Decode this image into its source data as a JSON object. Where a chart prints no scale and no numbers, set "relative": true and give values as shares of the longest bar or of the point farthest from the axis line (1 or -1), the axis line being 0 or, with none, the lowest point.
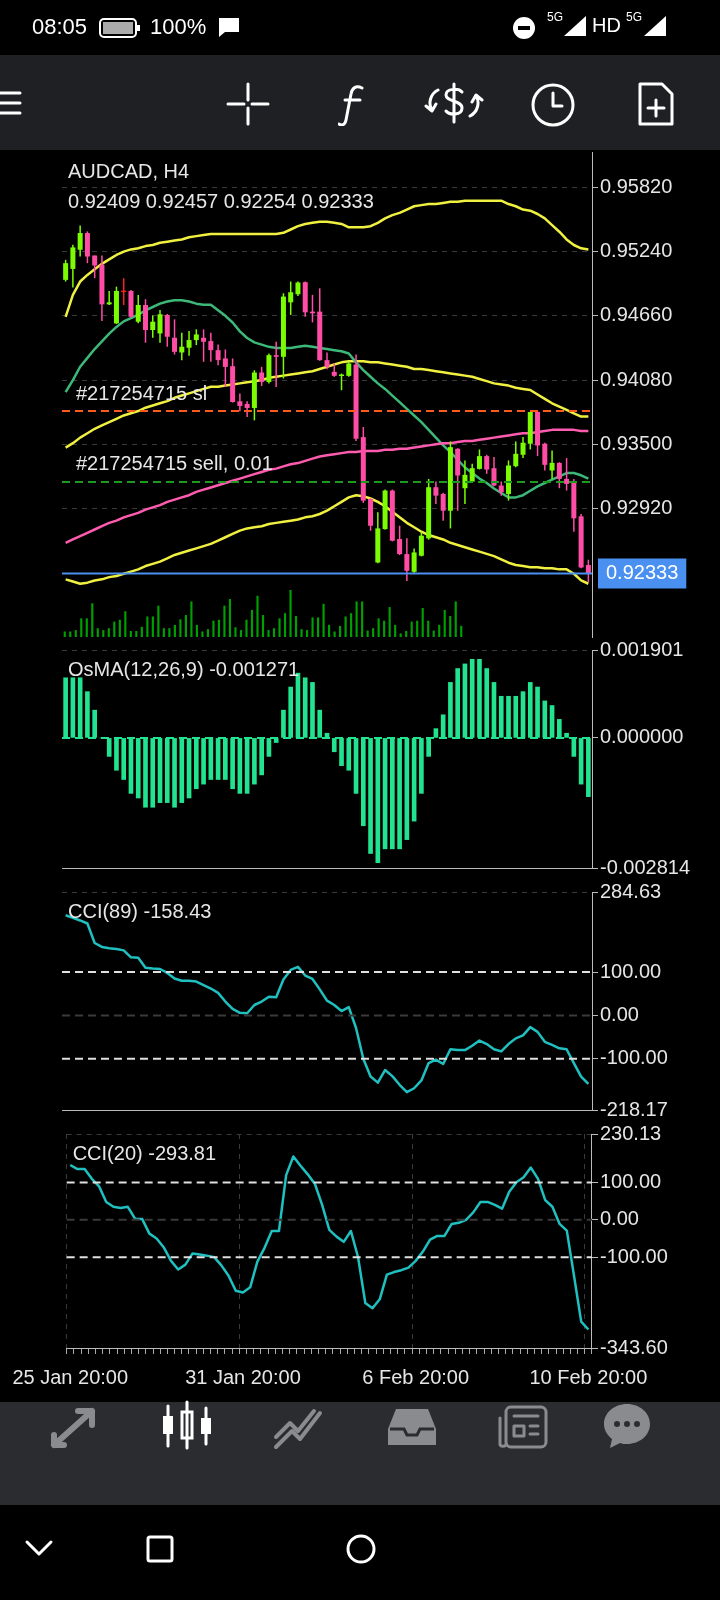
{
  "chart_data": [
    {
      "type": "candlestick",
      "title": "AUDCAD, H4",
      "subtitle": "0.92409 0.92457 0.92254 0.92333",
      "categories": [
        null,
        null,
        null,
        null,
        null,
        null,
        null,
        null,
        null,
        null,
        null,
        null,
        null,
        null,
        null,
        null,
        null,
        null,
        null,
        null,
        null,
        null,
        null,
        null,
        null,
        null,
        null,
        null,
        null,
        null,
        null,
        null,
        null,
        null,
        null,
        null,
        null,
        null,
        null,
        null,
        null,
        null,
        null,
        null,
        null,
        null,
        null,
        null,
        null,
        null,
        null,
        null,
        null,
        null,
        null,
        null,
        null,
        null,
        null,
        null,
        null,
        null,
        null,
        null,
        null,
        null,
        null,
        null,
        null,
        null,
        null,
        null,
        null
      ],
      "ohlc": [
        [
          0.94985,
          0.95166,
          0.9497,
          0.95136
        ],
        [
          0.95084,
          0.95302,
          0.94915,
          0.95278
        ],
        [
          0.95257,
          0.95477,
          0.95196,
          0.95408
        ],
        [
          0.95408,
          0.95423,
          0.95136,
          0.95196
        ],
        [
          0.95205,
          0.95205,
          0.95,
          0.95115
        ],
        [
          0.95121,
          0.95205,
          0.94613,
          0.94764
        ],
        [
          0.94764,
          0.94885,
          0.94758,
          0.94782
        ],
        [
          0.94592,
          0.94924,
          0.94586,
          0.94885
        ],
        [
          0.94888,
          0.95,
          0.94758,
          0.94882
        ],
        [
          0.94885,
          0.94894,
          0.94643,
          0.94652
        ],
        [
          0.94607,
          0.94849,
          0.94592,
          0.94758
        ],
        [
          0.94758,
          0.9481,
          0.94417,
          0.94532
        ],
        [
          0.94532,
          0.94662,
          0.94462,
          0.94607
        ],
        [
          0.94501,
          0.94713,
          0.94417,
          0.94674
        ],
        [
          0.94668,
          0.94677,
          0.94381,
          0.94471
        ],
        [
          0.94462,
          0.94628,
          0.94311,
          0.94335
        ],
        [
          0.94329,
          0.94508,
          0.9426,
          0.94381
        ],
        [
          0.94372,
          0.94523,
          0.94299,
          0.94441
        ],
        [
          0.94441,
          0.94538,
          0.94396,
          0.94492
        ],
        [
          0.94462,
          0.94538,
          0.94245,
          0.94426
        ],
        [
          0.94432,
          0.94508,
          0.94245,
          0.9435
        ],
        [
          0.9435,
          0.94402,
          0.94214,
          0.9426
        ],
        [
          0.94275,
          0.94356,
          0.94018,
          0.94199
        ],
        [
          0.94205,
          0.94275,
          0.93876,
          0.93882
        ],
        [
          0.93888,
          0.93958,
          0.93798,
          0.93846
        ],
        [
          0.93864,
          0.93888,
          0.93746,
          0.93828
        ],
        [
          0.93828,
          0.94169,
          0.93716,
          0.94148
        ],
        [
          0.94148,
          0.94199,
          0.94027,
          0.94063
        ],
        [
          0.94063,
          0.9432,
          0.94048,
          0.94305
        ],
        [
          0.94305,
          0.94426,
          0.94018,
          0.9429
        ],
        [
          0.9429,
          0.94864,
          0.94094,
          0.94834
        ],
        [
          0.94782,
          0.9497,
          0.94668,
          0.94873
        ],
        [
          0.94855,
          0.9497,
          0.9484,
          0.94961
        ],
        [
          0.94964,
          0.9497,
          0.94652,
          0.94692
        ],
        [
          0.94698,
          0.94849,
          0.94601,
          0.94683
        ],
        [
          0.94698,
          0.94909,
          0.94254,
          0.9426
        ],
        [
          0.9426,
          0.94329,
          0.94178,
          0.94199
        ],
        [
          0.94154,
          0.9423,
          0.94109,
          0.94118
        ],
        [
          0.94124,
          0.94139,
          0.93988,
          0.9413
        ],
        [
          0.94118,
          0.94245,
          0.94109,
          0.9423
        ],
        [
          0.9422,
          0.94311,
          0.93529,
          0.9355
        ],
        [
          0.93565,
          0.93656,
          0.9297,
          0.92991
        ],
        [
          0.93006,
          0.93012,
          0.92719,
          0.92764
        ],
        [
          0.92432,
          0.92885,
          0.92426,
          0.9274
        ],
        [
          0.92734,
          0.93091,
          0.92728,
          0.93082
        ],
        [
          0.93082,
          0.93091,
          0.92623,
          0.92629
        ],
        [
          0.92644,
          0.92764,
          0.92499,
          0.92508
        ],
        [
          0.92508,
          0.9265,
          0.92266,
          0.92357
        ],
        [
          0.92348,
          0.92559,
          0.92327,
          0.92523
        ],
        [
          0.92493,
          0.92704,
          0.92487,
          0.92674
        ],
        [
          0.9265,
          0.93187,
          0.92638,
          0.93112
        ],
        [
          0.93112,
          0.93163,
          0.92961,
          0.93036
        ],
        [
          0.93051,
          0.93061,
          0.9281,
          0.929
        ],
        [
          0.929,
          0.93526,
          0.9274,
          0.93474
        ],
        [
          0.93459,
          0.93465,
          0.929,
          0.93218
        ],
        [
          0.93103,
          0.93354,
          0.92961,
          0.93224
        ],
        [
          0.93163,
          0.93323,
          0.93157,
          0.93284
        ],
        [
          0.93278,
          0.93453,
          0.93272,
          0.93393
        ],
        [
          0.93393,
          0.93405,
          0.93233,
          0.93272
        ],
        [
          0.93284,
          0.93384,
          0.93121,
          0.93127
        ],
        [
          0.93127,
          0.93163,
          0.93036,
          0.93067
        ],
        [
          0.93051,
          0.93354,
          0.92991,
          0.93308
        ],
        [
          0.93302,
          0.93526,
          0.93293,
          0.93414
        ],
        [
          0.93405,
          0.93565,
          0.93375,
          0.93514
        ],
        [
          0.93505,
          0.93792,
          0.93453,
          0.93792
        ],
        [
          0.93792,
          0.93798,
          0.93393,
          0.93489
        ],
        [
          0.93505,
          0.93514,
          0.93263,
          0.93314
        ],
        [
          0.93263,
          0.93444,
          0.93187,
          0.93332
        ],
        [
          0.93332,
          0.93338,
          0.93103,
          0.93187
        ],
        [
          0.93187,
          0.93375,
          0.93082,
          0.93142
        ],
        [
          0.93151,
          0.93187,
          0.9271,
          0.92831
        ],
        [
          0.92849,
          0.9287,
          0.92381,
          0.92387
        ],
        [
          0.92409,
          0.92457,
          0.92254,
          0.92333
        ]
      ],
      "colors": [
        "#7cfc00",
        "#7cfc00",
        "#7cfc00",
        "#ff4da6",
        "#ff4da6",
        "#ff4da6",
        "#7cfc00",
        "#7cfc00",
        "#ff2020",
        "#ff4da6",
        "#7cfc00",
        "#ff4da6",
        "#7cfc00",
        "#7cfc00",
        "#ff4da6",
        "#ff4da6",
        "#7cfc00",
        "#7cfc00",
        "#7cfc00",
        "#ff4da6",
        "#ff4da6",
        "#ff4da6",
        "#ff4da6",
        "#ff4da6",
        "#ff4da6",
        "#ff4da6",
        "#7cfc00",
        "#ff4da6",
        "#7cfc00",
        "#ff4da6",
        "#7cfc00",
        "#7cfc00",
        "#7cfc00",
        "#ff4da6",
        "#ff4da6",
        "#ff4da6",
        "#ff4da6",
        "#ff4da6",
        "#7cfc00",
        "#7cfc00",
        "#ff4da6",
        "#ff4da6",
        "#ff4da6",
        "#7cfc00",
        "#7cfc00",
        "#ff4da6",
        "#ff4da6",
        "#ff4da6",
        "#7cfc00",
        "#7cfc00",
        "#7cfc00",
        "#ff4da6",
        "#ff4da6",
        "#7cfc00",
        "#ff4da6",
        "#7cfc00",
        "#7cfc00",
        "#7cfc00",
        "#ff4da6",
        "#ff4da6",
        "#ff4da6",
        "#7cfc00",
        "#7cfc00",
        "#7cfc00",
        "#7cfc00",
        "#ff4da6",
        "#ff4da6",
        "#7cfc00",
        "#ff4da6",
        "#ff4da6",
        "#ff4da6",
        "#ff4da6",
        "#ff4da6"
      ],
      "series": [
        {
          "type": "line",
          "color": "#f0f040",
          "values": [
            0.9465,
            0.9485,
            0.9497,
            0.9503,
            0.9508,
            0.9513,
            0.9517,
            0.9521,
            0.9524,
            0.9526,
            0.9527,
            0.9529,
            0.953,
            0.9532,
            0.9533,
            0.9534,
            0.9535,
            0.9537,
            0.9538,
            0.9539,
            0.954,
            0.954,
            0.954,
            0.954,
            0.954,
            0.954,
            0.954,
            0.954,
            0.954,
            0.954,
            0.9541,
            0.9544,
            0.9547,
            0.9549,
            0.955,
            0.9551,
            0.9551,
            0.955,
            0.9549,
            0.9546,
            0.9546,
            0.9546,
            0.9547,
            0.955,
            0.9554,
            0.9557,
            0.9559,
            0.9562,
            0.9565,
            0.9566,
            0.9567,
            0.9567,
            0.9568,
            0.9569,
            0.9569,
            0.957,
            0.957,
            0.957,
            0.957,
            0.957,
            0.957,
            0.9567,
            0.9565,
            0.9562,
            0.9561,
            0.9558,
            0.9554,
            0.9548,
            0.9542,
            0.9535,
            0.953,
            0.9527,
            0.9526
          ]
        },
        {
          "type": "line",
          "color": "#f0f040",
          "values": [
            0.9347,
            0.9351,
            0.9356,
            0.936,
            0.9364,
            0.9367,
            0.937,
            0.9373,
            0.9376,
            0.9378,
            0.938,
            0.9383,
            0.9385,
            0.9387,
            0.9389,
            0.9392,
            0.9394,
            0.9396,
            0.9398,
            0.94,
            0.9402,
            0.9402,
            0.9403,
            0.9404,
            0.9405,
            0.9406,
            0.9407,
            0.9408,
            0.941,
            0.9411,
            0.9412,
            0.9413,
            0.9414,
            0.9415,
            0.9416,
            0.9418,
            0.942,
            0.9422,
            0.9424,
            0.9425,
            0.9425,
            0.9425,
            0.9424,
            0.9424,
            0.9423,
            0.9422,
            0.9421,
            0.942,
            0.9418,
            0.9418,
            0.9417,
            0.9416,
            0.9415,
            0.9414,
            0.9413,
            0.9412,
            0.9411,
            0.9409,
            0.9407,
            0.9405,
            0.9404,
            0.9403,
            0.9401,
            0.94,
            0.9399,
            0.9395,
            0.9391,
            0.9387,
            0.9384,
            0.9381,
            0.9378,
            0.9375,
            0.9375
          ]
        },
        {
          "type": "line",
          "color": "#f0f040",
          "values": [
            0.9228,
            0.9226,
            0.9224,
            0.9225,
            0.9227,
            0.9228,
            0.923,
            0.9231,
            0.9233,
            0.9235,
            0.9237,
            0.924,
            0.9242,
            0.9244,
            0.9247,
            0.925,
            0.9252,
            0.9254,
            0.9256,
            0.9258,
            0.926,
            0.9263,
            0.9266,
            0.9269,
            0.9272,
            0.9274,
            0.9275,
            0.9276,
            0.9278,
            0.9279,
            0.928,
            0.9281,
            0.9282,
            0.9284,
            0.9285,
            0.9287,
            0.929,
            0.9294,
            0.9298,
            0.9302,
            0.9304,
            0.9303,
            0.9301,
            0.9298,
            0.9294,
            0.9289,
            0.9284,
            0.9279,
            0.9275,
            0.9271,
            0.9268,
            0.9266,
            0.9264,
            0.9261,
            0.9259,
            0.9257,
            0.9255,
            0.9253,
            0.9251,
            0.9249,
            0.9246,
            0.9243,
            0.9241,
            0.924,
            0.9239,
            0.9239,
            0.9238,
            0.9238,
            0.9237,
            0.9237,
            0.9233,
            0.9227,
            0.9224
          ]
        },
        {
          "type": "line",
          "color": "#3cb878",
          "values": [
            0.9397,
            0.9408,
            0.942,
            0.9428,
            0.9436,
            0.9443,
            0.945,
            0.9456,
            0.9461,
            0.9464,
            0.9467,
            0.9471,
            0.9474,
            0.9477,
            0.9479,
            0.948,
            0.948,
            0.9479,
            0.9477,
            0.9476,
            0.9476,
            0.9471,
            0.9466,
            0.946,
            0.9452,
            0.9446,
            0.9442,
            0.944,
            0.9438,
            0.9437,
            0.9437,
            0.9437,
            0.9438,
            0.9439,
            0.9438,
            0.9437,
            0.9436,
            0.9435,
            0.9434,
            0.9432,
            0.9424,
            0.9417,
            0.9411,
            0.9405,
            0.94,
            0.9394,
            0.9388,
            0.9382,
            0.9376,
            0.937,
            0.9363,
            0.9356,
            0.9349,
            0.9343,
            0.9336,
            0.9329,
            0.9324,
            0.9319,
            0.9315,
            0.931,
            0.9306,
            0.9302,
            0.9302,
            0.9304,
            0.9308,
            0.9312,
            0.9315,
            0.9318,
            0.9321,
            0.9324,
            0.9324,
            0.9322,
            0.9319
          ]
        },
        {
          "type": "line",
          "color": "#ff5cb0",
          "values": [
            0.9261,
            0.9264,
            0.9267,
            0.927,
            0.9273,
            0.9276,
            0.9279,
            0.9281,
            0.9284,
            0.9286,
            0.9288,
            0.9291,
            0.9293,
            0.9295,
            0.9298,
            0.93,
            0.9302,
            0.9304,
            0.9307,
            0.9309,
            0.9311,
            0.9313,
            0.9315,
            0.9317,
            0.9319,
            0.9321,
            0.9323,
            0.9325,
            0.9327,
            0.9328,
            0.933,
            0.9332,
            0.9333,
            0.9335,
            0.9337,
            0.9339,
            0.934,
            0.9341,
            0.9342,
            0.9343,
            0.9343,
            0.9344,
            0.9344,
            0.9344,
            0.9345,
            0.9345,
            0.9346,
            0.9346,
            0.9347,
            0.9348,
            0.9349,
            0.935,
            0.9351,
            0.9351,
            0.9352,
            0.9353,
            0.9353,
            0.9354,
            0.9355,
            0.9356,
            0.9357,
            0.9358,
            0.9359,
            0.936,
            0.936,
            0.9361,
            0.9362,
            0.9363,
            0.9363,
            0.9363,
            0.9363,
            0.9362,
            0.9362
          ]
        }
      ],
      "ylim": [
        0.9175,
        0.9614
      ],
      "yticks": [
        {
          "value": 0.9582,
          "label": "0.95820"
        },
        {
          "value": 0.9524,
          "label": "0.95240"
        },
        {
          "value": 0.9466,
          "label": "0.94660"
        },
        {
          "value": 0.9408,
          "label": "0.94080"
        },
        {
          "value": 0.935,
          "label": "0.93500"
        },
        {
          "value": 0.9292,
          "label": "0.92920"
        }
      ],
      "grid": true,
      "tick_labels": "y",
      "ref_lines": [
        {
          "axis": "y",
          "value": 0.938,
          "label": "#217254715 sl",
          "color": "#ff5a1e",
          "line_style": "dashed"
        },
        {
          "axis": "y",
          "value": 0.9316,
          "label": "#217254715 sell, 0.01",
          "color": "#1e9a1e",
          "line_style": "dashed"
        },
        {
          "axis": "y",
          "value": 0.92333,
          "label": "0.92333",
          "color": "#4a90f0",
          "line_style": "solid"
        }
      ],
      "annotations": [
        "08:05",
        "100%",
        "5G",
        "HD",
        "5G"
      ]
    },
    {
      "type": "bar",
      "relative": true,
      "tick_labels": false,
      "color": "#00a000",
      "categories": [
        null,
        null,
        null,
        null,
        null,
        null,
        null,
        null,
        null,
        null,
        null,
        null,
        null,
        null,
        null,
        null,
        null,
        null,
        null,
        null,
        null,
        null,
        null,
        null,
        null,
        null,
        null,
        null,
        null,
        null,
        null,
        null,
        null,
        null,
        null,
        null,
        null,
        null,
        null,
        null,
        null,
        null,
        null,
        null,
        null,
        null,
        null,
        null,
        null,
        null,
        null,
        null,
        null,
        null,
        null,
        null,
        null,
        null,
        null,
        null,
        null,
        null,
        null,
        null,
        null,
        null,
        null,
        null,
        null,
        null,
        null,
        null,
        null
      ],
      "values": [
        0.11,
        0.11,
        0.14,
        0.39,
        0.39,
        0.71,
        0.18,
        0.14,
        0.18,
        0.32,
        0.36,
        0.54,
        0.12,
        0.12,
        0.21,
        0.43,
        0.43,
        0.66,
        0.18,
        0.18,
        0.25,
        0.37,
        0.46,
        0.75,
        0.25,
        0.11,
        0.16,
        0.34,
        0.36,
        0.66,
        0.8,
        0.2,
        0.14,
        0.36,
        0.57,
        0.87,
        0.46,
        0.14,
        0.18,
        0.39,
        0.5,
        1,
        0.44,
        0.16,
        0.14,
        0.41,
        0.41,
        0.7,
        0.25,
        0.11,
        0.23,
        0.43,
        0.5,
        0.75,
        0.75,
        0.13,
        0.18,
        0.39,
        0.34,
        0.63,
        0.25,
        0.07,
        0.12,
        0.32,
        0.34,
        0.61,
        0.34,
        0.13,
        0.25,
        0.57,
        0.44,
        0.75,
        0.23
      ]
    },
    {
      "type": "bar",
      "title": "OsMA(12,26,9) -0.001271",
      "color": "#22e38f",
      "categories": [
        null,
        null,
        null,
        null,
        null,
        null,
        null,
        null,
        null,
        null,
        null,
        null,
        null,
        null,
        null,
        null,
        null,
        null,
        null,
        null,
        null,
        null,
        null,
        null,
        null,
        null,
        null,
        null,
        null,
        null,
        null,
        null,
        null,
        null,
        null,
        null,
        null,
        null,
        null,
        null,
        null,
        null,
        null,
        null,
        null,
        null,
        null,
        null,
        null,
        null,
        null,
        null,
        null,
        null,
        null,
        null,
        null,
        null,
        null,
        null,
        null,
        null,
        null,
        null,
        null,
        null,
        null,
        null,
        null,
        null,
        null,
        null,
        null
      ],
      "values": [
        0.0013,
        0.0013,
        0.0013,
        0.001,
        0.0006,
        0,
        -0.0004,
        -0.0007,
        -0.0009,
        -0.0012,
        -0.0013,
        -0.0015,
        -0.0015,
        -0.0014,
        -0.0014,
        -0.0015,
        -0.0014,
        -0.0013,
        -0.0011,
        -0.001,
        -0.0009,
        -0.0009,
        -0.0009,
        -0.0011,
        -0.0012,
        -0.0012,
        -0.001,
        -0.0008,
        -0.0004,
        -0.0001,
        0.0006,
        0.0011,
        0.0014,
        0.0013,
        0.0012,
        0.0006,
        0.0001,
        -0.0003,
        -0.0006,
        -0.0007,
        -0.0012,
        -0.0019,
        -0.0025,
        -0.0027,
        -0.0024,
        -0.0024,
        -0.0024,
        -0.0022,
        -0.0018,
        -0.0012,
        -0.0004,
        0.0002,
        0.0005,
        0.0012,
        0.0015,
        0.0016,
        0.0017,
        0.0017,
        0.0015,
        0.0012,
        0.0009,
        0.0009,
        0.0009,
        0.001,
        0.0012,
        0.0011,
        0.0008,
        0.0007,
        0.0004,
        0.0001,
        -0.0004,
        -0.001,
        -0.001271
      ],
      "ylim": [
        -0.002814,
        0.001901
      ],
      "yticks": [
        {
          "value": 0.001901,
          "label": "0.001901"
        },
        {
          "value": 0,
          "label": "0.000000"
        },
        {
          "value": -0.002814,
          "label": "-0.002814"
        }
      ],
      "grid": true,
      "tick_labels": "y",
      "ref_lines": [
        {
          "axis": "y",
          "value": 0,
          "color": "#22e38f",
          "line_style": "dashed"
        }
      ]
    },
    {
      "type": "line",
      "title": "CCI(89) -158.43",
      "categories": [
        null,
        null,
        null,
        null,
        null,
        null,
        null,
        null,
        null,
        null,
        null,
        null,
        null,
        null,
        null,
        null,
        null,
        null,
        null,
        null,
        null,
        null,
        null,
        null,
        null,
        null,
        null,
        null,
        null,
        null,
        null,
        null,
        null,
        null,
        null,
        null,
        null,
        null,
        null,
        null,
        null,
        null,
        null,
        null,
        null,
        null,
        null,
        null,
        null,
        null,
        null,
        null,
        null,
        null,
        null,
        null,
        null,
        null,
        null,
        null,
        null,
        null,
        null,
        null,
        null,
        null,
        null,
        null,
        null,
        null,
        null,
        null,
        null
      ],
      "series": [
        {
          "color": "#20c0c0",
          "values": [
            231,
            225,
            219,
            212,
            167,
            158,
            155,
            153,
            150,
            134,
            133,
            110,
            108,
            107,
            98,
            85,
            80,
            80,
            78,
            70,
            62,
            52,
            32,
            15,
            6,
            5,
            24,
            32,
            43,
            42,
            83,
            105,
            112,
            92,
            84,
            60,
            34,
            24,
            10,
            19,
            -29,
            -100,
            -141,
            -155,
            -126,
            -140,
            -160,
            -177,
            -168,
            -150,
            -110,
            -102,
            -112,
            -78,
            -80,
            -80,
            -70,
            -58,
            -66,
            -78,
            -83,
            -66,
            -53,
            -46,
            -27,
            -38,
            -61,
            -68,
            -76,
            -78,
            -110,
            -141,
            -158
          ]
        }
      ],
      "ylim": [
        -218.17,
        284.63
      ],
      "yticks": [
        {
          "value": 284.63,
          "label": "284.63"
        },
        {
          "value": 100,
          "label": "100.00"
        },
        {
          "value": 0,
          "label": "0.00"
        },
        {
          "value": -100,
          "label": "-100.00"
        },
        {
          "value": -218.17,
          "label": "-218.17"
        }
      ],
      "grid": true,
      "tick_labels": "y",
      "ref_lines": [
        {
          "axis": "y",
          "value": 100,
          "color": "#e0e0e0",
          "line_style": "dashed"
        },
        {
          "axis": "y",
          "value": 0,
          "color": "#3a3a3a",
          "line_style": "dashed"
        },
        {
          "axis": "y",
          "value": -100,
          "color": "#e0e0e0",
          "line_style": "dashed"
        }
      ]
    },
    {
      "type": "line",
      "title": "CCI(20) -293.81",
      "categories": [
        "25 Jan 20:00",
        null,
        null,
        null,
        null,
        null,
        null,
        null,
        null,
        null,
        null,
        null,
        null,
        null,
        null,
        null,
        null,
        null,
        null,
        null,
        null,
        null,
        null,
        null,
        "31 Jan 20:00",
        null,
        null,
        null,
        null,
        null,
        null,
        null,
        null,
        null,
        null,
        null,
        null,
        null,
        null,
        null,
        null,
        null,
        null,
        null,
        null,
        null,
        null,
        null,
        "6 Feb 20:00",
        null,
        null,
        null,
        null,
        null,
        null,
        null,
        null,
        null,
        null,
        null,
        null,
        null,
        null,
        null,
        null,
        null,
        null,
        null,
        null,
        null,
        null,
        null,
        "10 Feb 20:00"
      ],
      "series": [
        {
          "color": "#20c0c0",
          "values": [
            147,
            136,
            136,
            110,
            90,
            48,
            35,
            32,
            35,
            3,
            2,
            -37,
            -50,
            -74,
            -110,
            -133,
            -120,
            -90,
            -93,
            -96,
            -100,
            -122,
            -150,
            -190,
            -195,
            -181,
            -112,
            -75,
            -30,
            -30,
            120,
            170,
            145,
            122,
            96,
            40,
            -27,
            -45,
            -59,
            -30,
            -101,
            -223,
            -237,
            -213,
            -147,
            -140,
            -135,
            -128,
            -110,
            -85,
            -53,
            -43,
            -43,
            -11,
            -8,
            0,
            20,
            48,
            48,
            40,
            30,
            75,
            101,
            114,
            140,
            110,
            53,
            35,
            -11,
            -29,
            -150,
            -273,
            -294
          ]
        }
      ],
      "ylim": [
        -343.6,
        230.13
      ],
      "yticks": [
        {
          "value": 230.13,
          "label": "230.13"
        },
        {
          "value": 100,
          "label": "100.00"
        },
        {
          "value": 0,
          "label": "0.00"
        },
        {
          "value": -100,
          "label": "-100.00"
        },
        {
          "value": -343.6,
          "label": "-343.60"
        }
      ],
      "grid": true,
      "ref_lines": [
        {
          "axis": "y",
          "value": 100,
          "color": "#e0e0e0",
          "line_style": "dashed"
        },
        {
          "axis": "y",
          "value": 0,
          "color": "#3a3a3a",
          "line_style": "dashed"
        },
        {
          "axis": "y",
          "value": -100,
          "color": "#e0e0e0",
          "line_style": "dashed"
        }
      ]
    }
  ]
}
